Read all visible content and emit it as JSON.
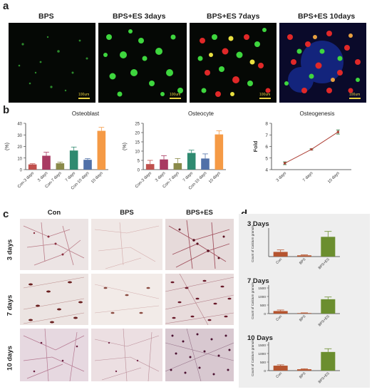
{
  "panel_a": {
    "letter": "a",
    "images": [
      {
        "label": "BPS",
        "scale_text": "100um"
      },
      {
        "label": "BPS+ES  3days",
        "scale_text": "100um"
      },
      {
        "label": "BPS+ES  7days",
        "scale_text": "100um"
      },
      {
        "label": "BPS+ES  10days",
        "scale_text": "100um"
      }
    ]
  },
  "panel_b": {
    "letter": "b"
  },
  "panel_c": {
    "letter": "c",
    "columns": [
      "Con",
      "BPS",
      "BPS+ES"
    ],
    "rows": [
      "3 days",
      "7 days",
      "10 days"
    ]
  },
  "panel_d": {
    "letter": "d"
  },
  "chart_data": [
    {
      "type": "bar",
      "title": "Osteoblast",
      "ylabel": "(%)",
      "ylim": [
        0,
        40
      ],
      "yticks": [
        "0",
        "10",
        "20",
        "30",
        "40"
      ],
      "categories": [
        "Con-3 days",
        "3 days",
        "Con-7 days",
        "7 days",
        "Con-10 days",
        "10 days"
      ],
      "values": [
        4.5,
        12,
        5.5,
        16.5,
        8.5,
        33.5
      ],
      "errors": [
        0.6,
        3,
        1,
        3,
        1,
        3
      ],
      "colors": [
        "#c0504d",
        "#a83a62",
        "#8a8a4a",
        "#2f8a70",
        "#5070a8",
        "#f59a45"
      ]
    },
    {
      "type": "bar",
      "title": "Osteocyte",
      "ylabel": "(%)",
      "ylim": [
        0,
        25
      ],
      "yticks": [
        "0",
        "5",
        "10",
        "15",
        "20",
        "25"
      ],
      "categories": [
        "Con-3 days",
        "3 days",
        "Con-7 days",
        "7 days",
        "Con-10 days",
        "10 days"
      ],
      "values": [
        3,
        5.5,
        3.5,
        9,
        6,
        19
      ],
      "errors": [
        2,
        2,
        2.5,
        1.5,
        2.5,
        2
      ],
      "colors": [
        "#c0504d",
        "#a83a62",
        "#8a8a4a",
        "#2f8a70",
        "#5070a8",
        "#f59a45"
      ]
    },
    {
      "type": "line",
      "title": "Osteogenesis",
      "ylabel": "Fold",
      "ylim": [
        4,
        8
      ],
      "yticks": [
        "4",
        "5",
        "6",
        "7",
        "8"
      ],
      "categories": [
        "3 days",
        "7 days",
        "10 days"
      ],
      "values": [
        4.55,
        5.75,
        7.25
      ],
      "errors": [
        0.12,
        0.05,
        0.18
      ],
      "color": "#b0443a"
    },
    {
      "type": "bar",
      "title": "3 Days",
      "ylabel": "Count of Calcium granule",
      "categories": [
        "Con",
        "BPS",
        "BPS+ES"
      ],
      "values": [
        95,
        25,
        400
      ],
      "errors": [
        40,
        10,
        110
      ],
      "colors": [
        "#b5542f",
        "#b5542f",
        "#6b8e2f"
      ]
    },
    {
      "type": "bar",
      "title": "7 Days",
      "ylabel": "Count of Calcium granule",
      "ylim": [
        0,
        1500
      ],
      "yticks": [
        "0",
        "500",
        "1000",
        "1500"
      ],
      "categories": [
        "Con",
        "BPS",
        "BPS+ES"
      ],
      "values": [
        150,
        30,
        840
      ],
      "errors": [
        60,
        15,
        130
      ],
      "colors": [
        "#b5542f",
        "#b5542f",
        "#6b8e2f"
      ]
    },
    {
      "type": "bar",
      "title": "10 Days",
      "ylabel": "Count of Calcium granule",
      "ylim": [
        0,
        1500
      ],
      "yticks": [
        "0",
        "500",
        "1000",
        "1500"
      ],
      "categories": [
        "Con",
        "BPS",
        "BPS+ES"
      ],
      "values": [
        290,
        80,
        1090
      ],
      "errors": [
        50,
        30,
        190
      ],
      "colors": [
        "#b5542f",
        "#b5542f",
        "#6b8e2f"
      ]
    }
  ]
}
